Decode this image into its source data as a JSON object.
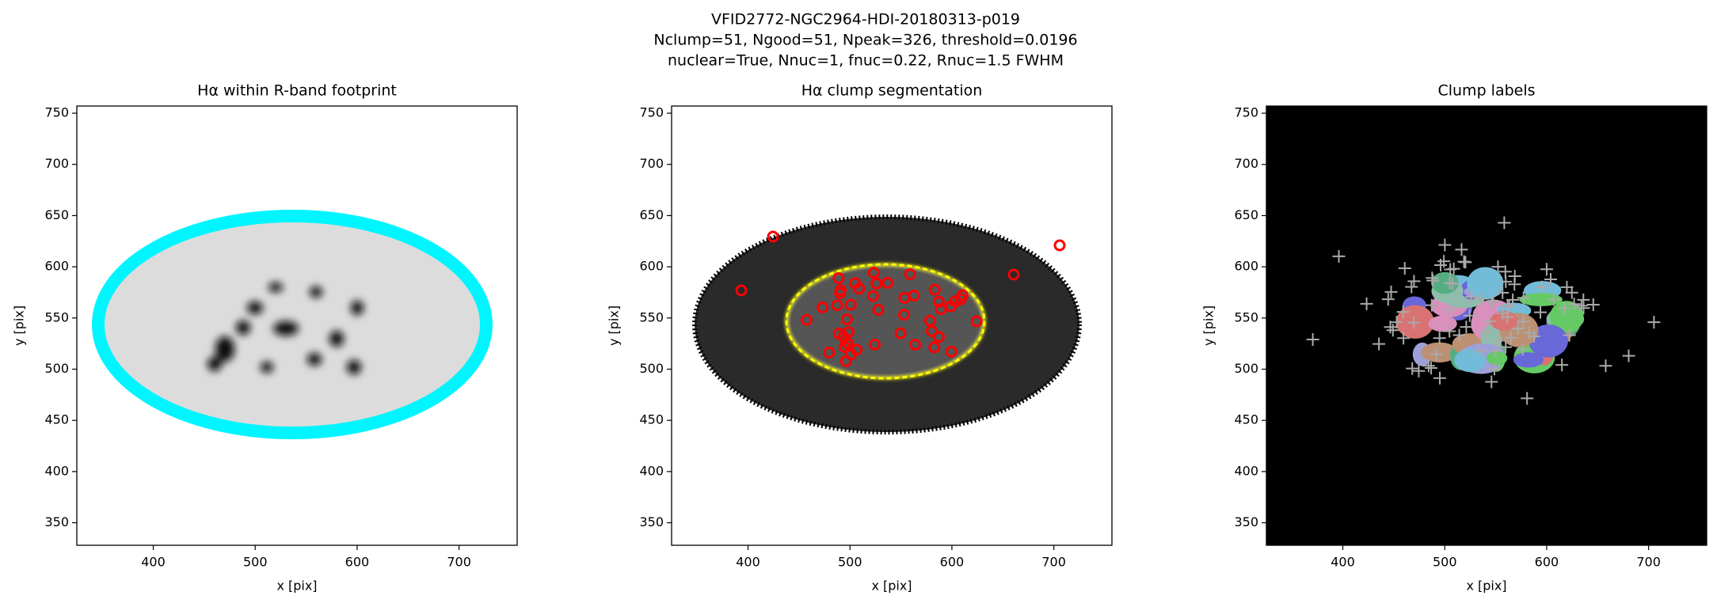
{
  "title": [
    "VFID2772-NGC2964-HDI-20180313-p019",
    "Nclump=51, Ngood=51, Npeak=326, threshold=0.0196",
    "nuclear=True, Nnuc=1, fnuc=0.22, Rnuc=1.5 FWHM"
  ],
  "chart_data": [
    {
      "type": "image",
      "title": "Hα within R-band footprint",
      "xlabel": "x [pix]",
      "ylabel": "y [pix]",
      "xlim": [
        325,
        757
      ],
      "ylim": [
        328,
        757
      ],
      "xticks": [
        400,
        500,
        600,
        700
      ],
      "yticks": [
        350,
        400,
        450,
        500,
        550,
        600,
        650,
        700,
        750
      ]
    },
    {
      "type": "image",
      "title": "Hα clump segmentation",
      "xlabel": "x [pix]",
      "ylabel": "y [pix]",
      "xlim": [
        325,
        757
      ],
      "ylim": [
        328,
        757
      ],
      "xticks": [
        400,
        500,
        600,
        700
      ],
      "yticks": [
        350,
        400,
        450,
        500,
        550,
        600,
        650,
        700,
        750
      ]
    },
    {
      "type": "image",
      "title": "Clump labels",
      "xlabel": "x [pix]",
      "ylabel": "y [pix]",
      "xlim": [
        325,
        757
      ],
      "ylim": [
        328,
        757
      ],
      "xticks": [
        400,
        500,
        600,
        700
      ],
      "yticks": [
        350,
        400,
        450,
        500,
        550,
        600,
        650,
        700,
        750
      ]
    }
  ]
}
